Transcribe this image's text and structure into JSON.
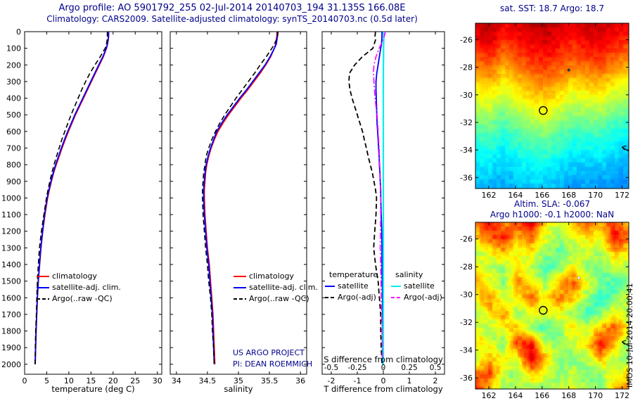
{
  "header": {
    "line1": "Argo profile: AO 5901792_255 02-Jul-2014 20140703_194 31.135S 166.08E",
    "line2": "Climatology: CARS2009. Satellite-adjusted climatology: synTS_20140703.nc (0.5d later)"
  },
  "annotations": {
    "project_line1": "US ARGO PROJECT",
    "project_line2": "PI: DEAN ROEMMICH",
    "side_text": "IMOS 10-Jul-2014 20:00:41"
  },
  "colors": {
    "climatology": "#ff0000",
    "satellite_adjusted": "#0000ff",
    "argo": "#000000",
    "satellite_salinity": "#00eeee",
    "argo_salinity": "#ff00ff",
    "title": "#00008b"
  },
  "chart_data": [
    {
      "id": "temperature_profile",
      "type": "line",
      "xlabel": "temperature (deg C)",
      "xlim": [
        0,
        31
      ],
      "xticks": [
        0,
        5,
        10,
        15,
        20,
        25,
        30
      ],
      "ylim": [
        0,
        2060
      ],
      "yticks": [
        0,
        100,
        200,
        300,
        400,
        500,
        600,
        700,
        800,
        900,
        1000,
        1100,
        1200,
        1300,
        1400,
        1500,
        1600,
        1700,
        1800,
        1900,
        2000
      ],
      "depths": [
        0,
        25,
        50,
        75,
        100,
        150,
        200,
        250,
        300,
        350,
        400,
        450,
        500,
        550,
        600,
        650,
        700,
        750,
        800,
        850,
        900,
        950,
        1000,
        1100,
        1200,
        1300,
        1400,
        1500,
        1600,
        1700,
        1800,
        1900,
        2000
      ],
      "series": [
        {
          "name": "climatology",
          "color": "#ff0000",
          "dash": "solid",
          "width": 1.8,
          "values": [
            19.0,
            19.0,
            18.9,
            18.75,
            18.5,
            17.8,
            16.9,
            16.0,
            15.1,
            14.2,
            13.3,
            12.4,
            11.5,
            10.7,
            9.9,
            9.15,
            8.45,
            7.8,
            7.15,
            6.55,
            6.05,
            5.6,
            5.2,
            4.6,
            4.1,
            3.7,
            3.4,
            3.1,
            2.9,
            2.75,
            2.6,
            2.5,
            2.4
          ]
        },
        {
          "name": "satellite-adj. clim.",
          "color": "#0000ff",
          "dash": "solid",
          "width": 1.8,
          "values": [
            18.95,
            18.95,
            18.85,
            18.7,
            18.45,
            17.7,
            16.75,
            15.85,
            14.95,
            14.05,
            13.15,
            12.25,
            11.35,
            10.55,
            9.75,
            9.0,
            8.3,
            7.65,
            7.0,
            6.45,
            5.95,
            5.5,
            5.1,
            4.5,
            4.05,
            3.65,
            3.35,
            3.08,
            2.88,
            2.72,
            2.58,
            2.48,
            2.38
          ]
        },
        {
          "name": "Argo(..raw -QC)",
          "color": "#000000",
          "dash": "dashed",
          "width": 1.6,
          "values": [
            18.7,
            18.7,
            18.65,
            18.5,
            18.2,
            17.1,
            15.9,
            14.75,
            13.8,
            12.9,
            12.1,
            11.3,
            10.5,
            9.8,
            9.1,
            8.4,
            7.8,
            7.2,
            6.65,
            6.15,
            5.7,
            5.3,
            4.95,
            4.35,
            3.8,
            3.35,
            3.1,
            2.9,
            2.75,
            2.65,
            2.5,
            2.42,
            2.35
          ]
        }
      ]
    },
    {
      "id": "salinity_profile",
      "type": "line",
      "xlabel": "salinity",
      "xlim": [
        33.9,
        36.1
      ],
      "xticks": [
        34,
        34.5,
        35,
        35.5,
        36
      ],
      "ylim": [
        0,
        2060
      ],
      "yticks": [
        0,
        100,
        200,
        300,
        400,
        500,
        600,
        700,
        800,
        900,
        1000,
        1100,
        1200,
        1300,
        1400,
        1500,
        1600,
        1700,
        1800,
        1900,
        2000
      ],
      "depths": [
        0,
        25,
        50,
        75,
        100,
        150,
        200,
        250,
        300,
        350,
        400,
        450,
        500,
        550,
        600,
        650,
        700,
        750,
        800,
        850,
        900,
        950,
        1000,
        1100,
        1200,
        1300,
        1400,
        1500,
        1600,
        1700,
        1800,
        1900,
        2000
      ],
      "series": [
        {
          "name": "climatology",
          "color": "#ff0000",
          "dash": "solid",
          "width": 1.8,
          "values": [
            35.62,
            35.62,
            35.61,
            35.6,
            35.58,
            35.52,
            35.44,
            35.35,
            35.25,
            35.15,
            35.04,
            34.94,
            34.84,
            34.75,
            34.67,
            34.61,
            34.56,
            34.52,
            34.49,
            34.47,
            34.46,
            34.45,
            34.45,
            34.46,
            34.48,
            34.5,
            34.53,
            34.55,
            34.57,
            34.59,
            34.6,
            34.61,
            34.62
          ]
        },
        {
          "name": "satellite-adj. clim.",
          "color": "#0000ff",
          "dash": "solid",
          "width": 1.8,
          "values": [
            35.63,
            35.63,
            35.62,
            35.61,
            35.58,
            35.51,
            35.43,
            35.33,
            35.23,
            35.13,
            35.02,
            34.92,
            34.82,
            34.73,
            34.65,
            34.6,
            34.55,
            34.51,
            34.48,
            34.46,
            34.45,
            34.44,
            34.44,
            34.45,
            34.47,
            34.49,
            34.52,
            34.54,
            34.56,
            34.58,
            34.59,
            34.6,
            34.61
          ]
        },
        {
          "name": "Argo(..raw -QC)",
          "color": "#000000",
          "dash": "dashed",
          "width": 1.6,
          "values": [
            35.64,
            35.63,
            35.61,
            35.58,
            35.54,
            35.45,
            35.35,
            35.26,
            35.16,
            35.06,
            34.96,
            34.87,
            34.78,
            34.7,
            34.63,
            34.57,
            34.52,
            34.48,
            34.46,
            34.44,
            34.43,
            34.42,
            34.42,
            34.43,
            34.45,
            34.47,
            34.5,
            34.52,
            34.55,
            34.57,
            34.58,
            34.6,
            34.61
          ]
        }
      ]
    },
    {
      "id": "difference_profile",
      "type": "line",
      "xlabel": "T difference from climatology",
      "xlabel_s": "S difference from climatology",
      "xlim": [
        -2.35,
        2.35
      ],
      "xticks": [
        -2,
        -1,
        0,
        1,
        2
      ],
      "s_xticks": [
        -0.5,
        -0.25,
        0,
        0.25,
        0.5
      ],
      "s_scale_factor": 4,
      "ylim": [
        0,
        2060
      ],
      "yticks": [
        0,
        100,
        200,
        300,
        400,
        500,
        600,
        700,
        800,
        900,
        1000,
        1100,
        1200,
        1300,
        1400,
        1500,
        1600,
        1700,
        1800,
        1900,
        2000
      ],
      "depths": [
        0,
        25,
        50,
        75,
        100,
        150,
        200,
        250,
        300,
        350,
        400,
        450,
        500,
        550,
        600,
        650,
        700,
        750,
        800,
        850,
        900,
        950,
        1000,
        1100,
        1200,
        1300,
        1400,
        1500,
        1600,
        1700,
        1800,
        1900,
        2000
      ],
      "legend_headers": [
        "temperature",
        "salinity"
      ],
      "series": [
        {
          "name": "satellite",
          "group": "temperature",
          "color": "#0000ff",
          "dash": "solid",
          "width": 1.8,
          "scale": 1,
          "values": [
            -0.05,
            -0.05,
            -0.06,
            -0.07,
            -0.1,
            -0.15,
            -0.2,
            -0.25,
            -0.28,
            -0.28,
            -0.27,
            -0.26,
            -0.25,
            -0.24,
            -0.22,
            -0.2,
            -0.18,
            -0.16,
            -0.15,
            -0.13,
            -0.12,
            -0.1,
            -0.1,
            -0.08,
            -0.06,
            -0.05,
            -0.05,
            -0.04,
            -0.03,
            -0.03,
            -0.02,
            -0.02,
            -0.02
          ]
        },
        {
          "name": "Argo(-adj)",
          "group": "temperature",
          "color": "#000000",
          "dash": "dashed",
          "width": 1.8,
          "scale": 1,
          "values": [
            -0.3,
            -0.32,
            -0.3,
            -0.35,
            -0.4,
            -0.8,
            -1.1,
            -1.3,
            -1.32,
            -1.28,
            -1.2,
            -1.1,
            -1.0,
            -0.9,
            -0.8,
            -0.73,
            -0.65,
            -0.58,
            -0.5,
            -0.42,
            -0.36,
            -0.3,
            -0.26,
            -0.28,
            -0.33,
            -0.37,
            -0.3,
            -0.2,
            -0.15,
            -0.1,
            -0.1,
            -0.08,
            -0.05
          ]
        },
        {
          "name": "satellite",
          "group": "salinity",
          "color": "#00eeee",
          "dash": "solid",
          "width": 2.2,
          "scale": 4,
          "values": [
            0.005,
            0.005,
            0.004,
            0.003,
            0.002,
            0.002,
            0.001,
            0.001,
            0,
            0,
            0,
            0,
            0,
            0,
            0,
            0,
            0,
            0,
            0,
            0,
            0,
            0,
            0,
            0,
            0,
            0,
            0,
            0,
            0,
            0,
            0,
            0,
            0
          ]
        },
        {
          "name": "Argo(-adj)",
          "group": "salinity",
          "color": "#ff00ff",
          "dash": "dashdot",
          "width": 1.6,
          "scale": 4,
          "values": [
            0.02,
            0.01,
            -0.005,
            -0.02,
            -0.04,
            -0.07,
            -0.09,
            -0.095,
            -0.09,
            -0.085,
            -0.08,
            -0.07,
            -0.06,
            -0.055,
            -0.05,
            -0.045,
            -0.04,
            -0.038,
            -0.035,
            -0.03,
            -0.03,
            -0.028,
            -0.025,
            -0.025,
            -0.028,
            -0.03,
            -0.025,
            -0.022,
            -0.02,
            -0.015,
            -0.012,
            -0.01,
            -0.01
          ]
        }
      ]
    },
    {
      "id": "sst_map",
      "type": "heatmap",
      "title": "sat. SST: 18.7 Argo: 18.7",
      "lon_range": [
        161,
        172.5
      ],
      "lat_range": [
        -24.8,
        -36.8
      ],
      "xticks": [
        162,
        164,
        166,
        168,
        170,
        172
      ],
      "yticks": [
        -26,
        -28,
        -30,
        -32,
        -34,
        -36
      ],
      "colormap": "jet",
      "color_range": [
        8,
        24.7
      ],
      "noise_fine": 0.3,
      "noise_coarse": 0.8,
      "markers": [
        {
          "type": "circle",
          "lon": 166.08,
          "lat": -31.135
        },
        {
          "type": "dot",
          "lon": 168.0,
          "lat": -28.2,
          "color": "#333333"
        },
        {
          "type": "arrow",
          "lon": 172.2,
          "lat": -33.9
        }
      ],
      "grid": [
        [
          23.5,
          23.8,
          22.8,
          23.2,
          23.6,
          23.9,
          23.3,
          22.9,
          23.4,
          23.7,
          23.1,
          22.8
        ],
        [
          22.6,
          23.4,
          21.9,
          22.5,
          23.0,
          23.4,
          22.8,
          22.3,
          22.9,
          23.2,
          22.5,
          22.0
        ],
        [
          21.5,
          22.3,
          20.8,
          21.6,
          22.2,
          22.6,
          22.0,
          21.4,
          21.9,
          22.3,
          21.4,
          20.9
        ],
        [
          20.2,
          20.9,
          19.6,
          20.5,
          21.2,
          21.6,
          21.0,
          20.3,
          20.7,
          21.0,
          20.1,
          19.5
        ],
        [
          19.0,
          19.5,
          18.4,
          19.3,
          20.0,
          20.4,
          19.8,
          19.0,
          19.3,
          19.6,
          18.7,
          18.1
        ],
        [
          17.9,
          18.3,
          17.3,
          18.2,
          18.9,
          19.2,
          18.6,
          17.8,
          18.0,
          18.2,
          17.4,
          16.9
        ],
        [
          16.8,
          17.1,
          16.2,
          17.1,
          17.8,
          18.0,
          17.4,
          16.6,
          16.8,
          16.9,
          16.2,
          15.7
        ],
        [
          15.8,
          16.0,
          15.2,
          16.0,
          16.6,
          16.8,
          16.2,
          15.5,
          15.6,
          15.7,
          15.1,
          14.7
        ],
        [
          15.0,
          15.1,
          14.4,
          15.1,
          15.6,
          15.7,
          15.2,
          14.6,
          14.7,
          14.7,
          14.2,
          13.9
        ],
        [
          14.3,
          14.3,
          13.7,
          14.3,
          14.7,
          14.8,
          14.3,
          13.8,
          13.9,
          13.8,
          13.5,
          13.2
        ],
        [
          13.7,
          13.6,
          13.2,
          13.7,
          14.0,
          14.0,
          13.6,
          13.2,
          13.2,
          13.1,
          12.9,
          12.7
        ],
        [
          13.2,
          13.1,
          12.8,
          13.2,
          13.4,
          13.4,
          13.1,
          12.7,
          12.7,
          12.6,
          12.5,
          12.4
        ]
      ]
    },
    {
      "id": "sla_map",
      "type": "heatmap",
      "title1": "Altim. SLA: -0.067",
      "title2": "Argo h1000: -0.1 h2000: NaN",
      "lon_range": [
        161,
        172.5
      ],
      "lat_range": [
        -24.8,
        -36.8
      ],
      "xticks": [
        162,
        164,
        166,
        168,
        170,
        172
      ],
      "yticks": [
        -26,
        -28,
        -30,
        -32,
        -34,
        -36
      ],
      "colormap": "jet",
      "color_range": [
        -0.4,
        0.4
      ],
      "noise_fine": 0.02,
      "noise_coarse": 0.06,
      "markers": [
        {
          "type": "circle",
          "lon": 166.08,
          "lat": -31.135
        },
        {
          "type": "dot",
          "lon": 168.75,
          "lat": -28.8,
          "color": "#ffffff"
        },
        {
          "type": "arrow",
          "lon": 172.2,
          "lat": -33.5
        }
      ],
      "grid": [
        [
          0.22,
          0.3,
          0.18,
          0.25,
          0.32,
          0.12,
          0.05,
          0.15,
          0.22,
          0.18,
          0.25,
          0.15
        ],
        [
          0.12,
          0.22,
          0.28,
          0.15,
          0.22,
          0.08,
          0.02,
          0.08,
          0.12,
          0.1,
          0.3,
          0.22
        ],
        [
          0.05,
          0.1,
          0.15,
          0.08,
          0.1,
          0.03,
          -0.02,
          0.02,
          0.05,
          0.04,
          0.15,
          0.1
        ],
        [
          0.1,
          0.05,
          0.02,
          0.12,
          0.04,
          -0.05,
          0.0,
          0.1,
          0.02,
          -0.02,
          0.05,
          0.03
        ],
        [
          0.18,
          0.1,
          0.0,
          0.2,
          0.12,
          0.02,
          0.15,
          0.25,
          0.08,
          0.0,
          -0.05,
          0.0
        ],
        [
          0.1,
          0.2,
          0.05,
          0.1,
          0.22,
          0.1,
          0.2,
          0.15,
          0.02,
          -0.08,
          0.0,
          0.05
        ],
        [
          0.02,
          0.12,
          0.18,
          0.02,
          0.1,
          0.05,
          0.1,
          0.02,
          -0.05,
          0.0,
          0.1,
          0.02
        ],
        [
          0.08,
          0.02,
          0.1,
          0.15,
          0.02,
          -0.05,
          0.02,
          0.12,
          0.05,
          0.15,
          0.25,
          0.1
        ],
        [
          0.15,
          0.08,
          0.0,
          0.25,
          0.3,
          0.05,
          0.0,
          0.05,
          0.12,
          0.3,
          0.15,
          0.02
        ],
        [
          0.05,
          0.15,
          0.1,
          0.1,
          0.35,
          0.15,
          0.02,
          0.0,
          0.05,
          0.15,
          0.05,
          0.0
        ],
        [
          0.2,
          0.25,
          0.05,
          0.0,
          0.15,
          0.1,
          0.0,
          0.05,
          0.0,
          0.02,
          0.08,
          0.12
        ],
        [
          0.28,
          0.15,
          0.02,
          0.05,
          0.02,
          0.0,
          0.05,
          0.1,
          0.02,
          0.0,
          0.15,
          0.2
        ]
      ]
    }
  ]
}
